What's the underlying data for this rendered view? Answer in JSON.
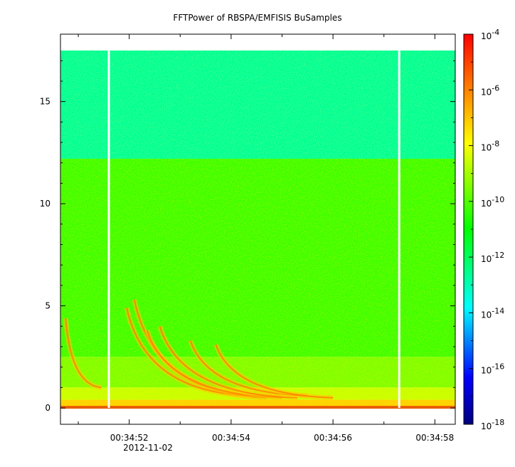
{
  "chart_data": {
    "type": "heatmap",
    "title": "FFTPower of RBSPA/EMFISIS  BuSamples",
    "xlabel": "",
    "ylabel": "",
    "x_ticks": [
      "00:34:52",
      "00:34:54",
      "00:34:56",
      "00:34:58"
    ],
    "x_date": "2012-11-02",
    "xlim_seconds": [
      50.65,
      58.4
    ],
    "x_tick_seconds": [
      52,
      54,
      56,
      58
    ],
    "y_ticks": [
      0,
      5,
      10,
      15
    ],
    "ylim": [
      -0.8,
      18.3
    ],
    "data_y_range": [
      0,
      17.5
    ],
    "gaps_seconds": [
      51.6,
      57.3
    ],
    "colorbar": {
      "scale": "log",
      "range": [
        1e-18,
        0.0001
      ],
      "tick_labels": [
        {
          "base": "10",
          "exp": "-4"
        },
        {
          "base": "10",
          "exp": "-6"
        },
        {
          "base": "10",
          "exp": "-8"
        },
        {
          "base": "10",
          "exp": "-10"
        },
        {
          "base": "10",
          "exp": "-12"
        },
        {
          "base": "10",
          "exp": "-14"
        },
        {
          "base": "10",
          "exp": "-16"
        },
        {
          "base": "10",
          "exp": "-18"
        }
      ],
      "tick_exponents": [
        -4,
        -6,
        -8,
        -10,
        -12,
        -14,
        -16,
        -18
      ]
    },
    "power_bands": [
      {
        "y_min": 12.2,
        "y_max": 17.5,
        "log_power": -12.6
      },
      {
        "y_min": 2.5,
        "y_max": 12.2,
        "log_power": -10.3
      },
      {
        "y_min": 1.0,
        "y_max": 2.5,
        "log_power": -9.5
      },
      {
        "y_min": 0.4,
        "y_max": 1.0,
        "log_power": -8.6
      },
      {
        "y_min": 0.0,
        "y_max": 0.4,
        "log_power": -7.2
      }
    ],
    "chorus_arcs": [
      {
        "t_start": 52.1,
        "f_start": 5.3,
        "t_end": 54.7,
        "f_end": 0.5
      },
      {
        "t_start": 51.95,
        "f_start": 4.9,
        "t_end": 54.4,
        "f_end": 0.6
      },
      {
        "t_start": 52.35,
        "f_start": 3.8,
        "t_end": 55.0,
        "f_end": 0.5
      },
      {
        "t_start": 52.6,
        "f_start": 4.0,
        "t_end": 55.3,
        "f_end": 0.5
      },
      {
        "t_start": 53.2,
        "f_start": 3.3,
        "t_end": 55.5,
        "f_end": 0.6
      },
      {
        "t_start": 53.7,
        "f_start": 3.1,
        "t_end": 56.0,
        "f_end": 0.5
      },
      {
        "t_start": 50.75,
        "f_start": 4.4,
        "t_end": 51.45,
        "f_end": 1.0
      }
    ]
  }
}
